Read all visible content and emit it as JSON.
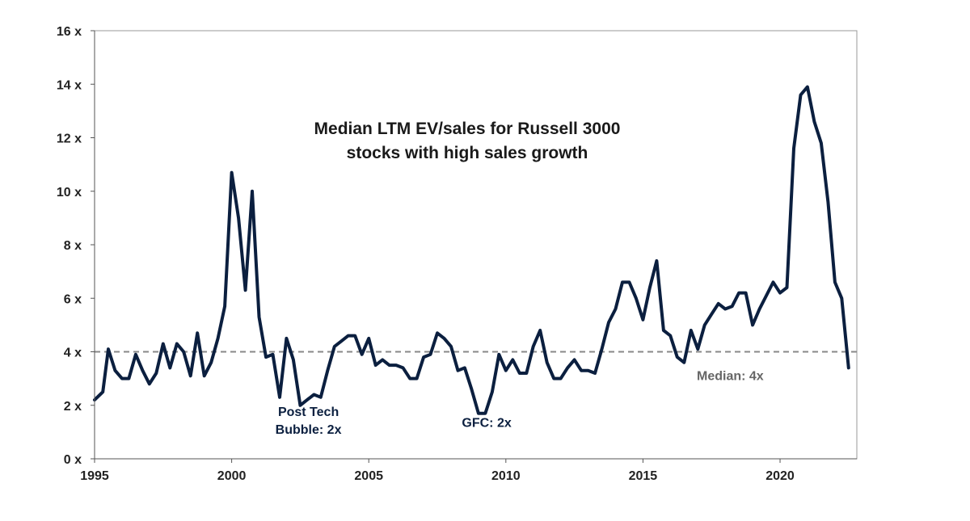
{
  "chart_data": {
    "type": "line",
    "title_lines": [
      "Median LTM EV/sales for Russell 3000",
      "stocks with high sales growth"
    ],
    "xlabel": "",
    "ylabel": "",
    "xlim": [
      1995,
      2022.8
    ],
    "ylim": [
      0,
      16
    ],
    "x_ticks": [
      1995,
      2000,
      2005,
      2010,
      2015,
      2020
    ],
    "y_ticks": [
      {
        "value": 0,
        "label": "0 x"
      },
      {
        "value": 2,
        "label": "2 x"
      },
      {
        "value": 4,
        "label": "4 x"
      },
      {
        "value": 6,
        "label": "6 x"
      },
      {
        "value": 8,
        "label": "8 x"
      },
      {
        "value": 10,
        "label": "10 x"
      },
      {
        "value": 12,
        "label": "12 x"
      },
      {
        "value": 14,
        "label": "14 x"
      },
      {
        "value": 16,
        "label": "16 x"
      }
    ],
    "grid": false,
    "colors": {
      "line": "#0b1f3f",
      "median": "#888888",
      "title": "#1a1a1a",
      "annotation": "#0b1f3f",
      "frame": "#999999"
    },
    "median": {
      "value": 4,
      "label": "Median: 4x"
    },
    "annotations": [
      {
        "lines": [
          "Post Tech",
          "Bubble: 2x"
        ],
        "x": 2002.8,
        "y": 1.6
      },
      {
        "lines": [
          "GFC: 2x"
        ],
        "x": 2009.3,
        "y": 1.2
      }
    ],
    "series": [
      {
        "values": [
          [
            1995.0,
            2.2
          ],
          [
            1995.3,
            2.5
          ],
          [
            1995.5,
            4.1
          ],
          [
            1995.75,
            3.3
          ],
          [
            1996.0,
            3.0
          ],
          [
            1996.25,
            3.0
          ],
          [
            1996.5,
            3.9
          ],
          [
            1996.75,
            3.3
          ],
          [
            1997.0,
            2.8
          ],
          [
            1997.25,
            3.2
          ],
          [
            1997.5,
            4.3
          ],
          [
            1997.75,
            3.4
          ],
          [
            1998.0,
            4.3
          ],
          [
            1998.25,
            4.0
          ],
          [
            1998.5,
            3.1
          ],
          [
            1998.75,
            4.7
          ],
          [
            1999.0,
            3.1
          ],
          [
            1999.25,
            3.6
          ],
          [
            1999.5,
            4.5
          ],
          [
            1999.75,
            5.7
          ],
          [
            2000.0,
            10.7
          ],
          [
            2000.25,
            9.0
          ],
          [
            2000.5,
            6.3
          ],
          [
            2000.75,
            10.0
          ],
          [
            2001.0,
            5.3
          ],
          [
            2001.25,
            3.8
          ],
          [
            2001.5,
            3.9
          ],
          [
            2001.75,
            2.3
          ],
          [
            2002.0,
            4.5
          ],
          [
            2002.25,
            3.7
          ],
          [
            2002.5,
            2.0
          ],
          [
            2002.75,
            2.2
          ],
          [
            2003.0,
            2.4
          ],
          [
            2003.25,
            2.3
          ],
          [
            2003.5,
            3.3
          ],
          [
            2003.75,
            4.2
          ],
          [
            2004.0,
            4.4
          ],
          [
            2004.25,
            4.6
          ],
          [
            2004.5,
            4.6
          ],
          [
            2004.75,
            3.9
          ],
          [
            2005.0,
            4.5
          ],
          [
            2005.25,
            3.5
          ],
          [
            2005.5,
            3.7
          ],
          [
            2005.75,
            3.5
          ],
          [
            2006.0,
            3.5
          ],
          [
            2006.25,
            3.4
          ],
          [
            2006.5,
            3.0
          ],
          [
            2006.75,
            3.0
          ],
          [
            2007.0,
            3.8
          ],
          [
            2007.25,
            3.9
          ],
          [
            2007.5,
            4.7
          ],
          [
            2007.75,
            4.5
          ],
          [
            2008.0,
            4.2
          ],
          [
            2008.25,
            3.3
          ],
          [
            2008.5,
            3.4
          ],
          [
            2008.75,
            2.6
          ],
          [
            2009.0,
            1.7
          ],
          [
            2009.25,
            1.7
          ],
          [
            2009.5,
            2.5
          ],
          [
            2009.75,
            3.9
          ],
          [
            2010.0,
            3.3
          ],
          [
            2010.25,
            3.7
          ],
          [
            2010.5,
            3.2
          ],
          [
            2010.75,
            3.2
          ],
          [
            2011.0,
            4.2
          ],
          [
            2011.25,
            4.8
          ],
          [
            2011.5,
            3.6
          ],
          [
            2011.75,
            3.0
          ],
          [
            2012.0,
            3.0
          ],
          [
            2012.25,
            3.4
          ],
          [
            2012.5,
            3.7
          ],
          [
            2012.75,
            3.3
          ],
          [
            2013.0,
            3.3
          ],
          [
            2013.25,
            3.2
          ],
          [
            2013.5,
            4.1
          ],
          [
            2013.75,
            5.1
          ],
          [
            2014.0,
            5.6
          ],
          [
            2014.25,
            6.6
          ],
          [
            2014.5,
            6.6
          ],
          [
            2014.75,
            6.0
          ],
          [
            2015.0,
            5.2
          ],
          [
            2015.25,
            6.4
          ],
          [
            2015.5,
            7.4
          ],
          [
            2015.75,
            4.8
          ],
          [
            2016.0,
            4.6
          ],
          [
            2016.25,
            3.8
          ],
          [
            2016.5,
            3.6
          ],
          [
            2016.75,
            4.8
          ],
          [
            2017.0,
            4.1
          ],
          [
            2017.25,
            5.0
          ],
          [
            2017.5,
            5.4
          ],
          [
            2017.75,
            5.8
          ],
          [
            2018.0,
            5.6
          ],
          [
            2018.25,
            5.7
          ],
          [
            2018.5,
            6.2
          ],
          [
            2018.75,
            6.2
          ],
          [
            2019.0,
            5.0
          ],
          [
            2019.25,
            5.6
          ],
          [
            2019.5,
            6.1
          ],
          [
            2019.75,
            6.6
          ],
          [
            2020.0,
            6.2
          ],
          [
            2020.25,
            6.4
          ],
          [
            2020.5,
            11.6
          ],
          [
            2020.75,
            13.6
          ],
          [
            2021.0,
            13.9
          ],
          [
            2021.25,
            12.6
          ],
          [
            2021.5,
            11.8
          ],
          [
            2021.75,
            9.6
          ],
          [
            2022.0,
            6.6
          ],
          [
            2022.25,
            6.0
          ],
          [
            2022.5,
            3.4
          ]
        ]
      }
    ]
  }
}
